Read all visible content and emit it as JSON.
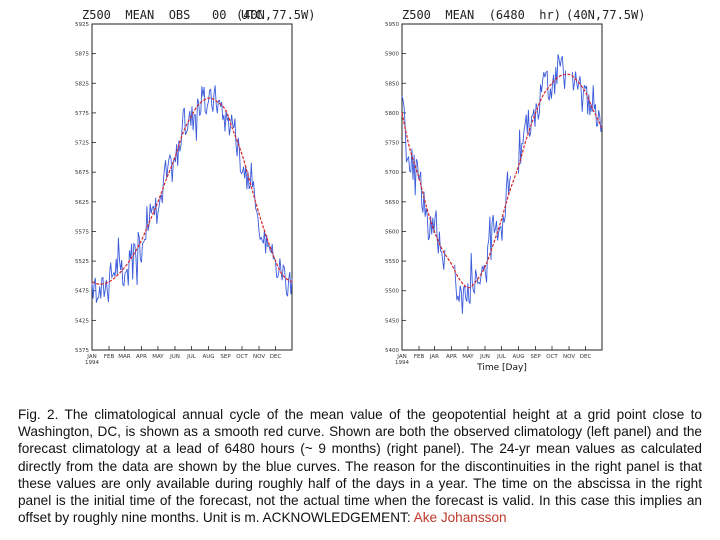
{
  "panels": [
    {
      "id": "left",
      "title": "Z500  MEAN  OBS   00  UTC",
      "location": "(40N,77.5W)",
      "xlabel": "",
      "months": [
        "JAN\n1994",
        "FEB",
        "MAR",
        "APR",
        "MAY",
        "JUN",
        "JUL",
        "AUG",
        "SEP",
        "OCT",
        "NOV",
        "DEC"
      ],
      "yticks": [
        5375,
        5425,
        5475,
        5525,
        5575,
        5625,
        5675,
        5725,
        5775,
        5825,
        5875,
        5925
      ],
      "ylim": [
        5375,
        5925
      ]
    },
    {
      "id": "right",
      "title": "Z500  MEAN  (6480  hr)",
      "location": "(40N,77.5W)",
      "xlabel": "Time [Day]",
      "months": [
        "JAN\n1994",
        "FEB",
        "JAR",
        "APR",
        "MAY",
        "JUN",
        "JUL",
        "AUG",
        "SEP",
        "OCT",
        "NOV",
        "DEC"
      ],
      "yticks": [
        5400,
        5450,
        5500,
        5550,
        5600,
        5650,
        5700,
        5750,
        5800,
        5850,
        5900,
        5950
      ],
      "ylim": [
        5400,
        5950
      ]
    }
  ],
  "chart_data": [
    {
      "type": "line",
      "title": "Z500  MEAN  OBS   00  UTC",
      "subtitle": "(40N,77.5W)",
      "xlabel": "",
      "ylabel": "",
      "x_ticks": [
        "JAN 1994",
        "FEB",
        "MAR",
        "APR",
        "MAY",
        "JUN",
        "JUL",
        "AUG",
        "SEP",
        "OCT",
        "NOV",
        "DEC"
      ],
      "ylim": [
        5375,
        5925
      ],
      "series": [
        {
          "color": "#d62728",
          "style": "smooth",
          "x": [
            "Jan 1",
            "Jan 15",
            "Feb 1",
            "Feb 15",
            "Mar 1",
            "Mar 15",
            "Apr 1",
            "Apr 15",
            "May 1",
            "May 15",
            "Jun 1",
            "Jun 15",
            "Jul 1",
            "Jul 15",
            "Aug 1",
            "Aug 15",
            "Sep 1",
            "Sep 15",
            "Oct 1",
            "Oct 15",
            "Nov 1",
            "Nov 15",
            "Dec 1",
            "Dec 15",
            "Dec 31"
          ],
          "y": [
            5490,
            5486,
            5490,
            5500,
            5514,
            5532,
            5560,
            5590,
            5625,
            5660,
            5700,
            5740,
            5770,
            5790,
            5800,
            5795,
            5780,
            5745,
            5705,
            5660,
            5605,
            5565,
            5525,
            5500,
            5490
          ]
        },
        {
          "color": "#3b5bdb",
          "style": "noisy",
          "x": [
            "Jan 1",
            "Jan 15",
            "Feb 1",
            "Feb 15",
            "Mar 1",
            "Mar 15",
            "Apr 1",
            "Apr 15",
            "May 1",
            "May 15",
            "Jun 1",
            "Jun 15",
            "Jul 1",
            "Jul 15",
            "Aug 1",
            "Aug 15",
            "Sep 1",
            "Sep 15",
            "Oct 1",
            "Oct 15",
            "Nov 1",
            "Nov 15",
            "Dec 1",
            "Dec 15",
            "Dec 31"
          ],
          "y": [
            5505,
            5470,
            5495,
            5520,
            5490,
            5545,
            5550,
            5610,
            5615,
            5670,
            5690,
            5755,
            5765,
            5795,
            5790,
            5800,
            5765,
            5760,
            5690,
            5670,
            5585,
            5580,
            5515,
            5510,
            5470
          ]
        }
      ]
    },
    {
      "type": "line",
      "title": "Z500  MEAN  (6480  hr)",
      "subtitle": "(40N,77.5W)",
      "xlabel": "Time [Day]",
      "ylabel": "",
      "x_ticks": [
        "JAN 1994",
        "FEB",
        "JAR",
        "APR",
        "MAY",
        "JUN",
        "JUL",
        "AUG",
        "SEP",
        "OCT",
        "NOV",
        "DEC"
      ],
      "ylim": [
        5400,
        5950
      ],
      "series": [
        {
          "color": "#d62728",
          "style": "smooth",
          "x": [
            "Jan 1",
            "Jan 15",
            "Feb 1",
            "Feb 15",
            "Mar 1",
            "Mar 15",
            "Apr 1",
            "Apr 15",
            "May 1",
            "May 15",
            "Jun 1",
            "Jun 15",
            "Jul 1",
            "Jul 15",
            "Aug 1",
            "Aug 15",
            "Sep 1",
            "Sep 15",
            "Oct 1",
            "Oct 15",
            "Nov 1",
            "Nov 15",
            "Dec 1",
            "Dec 15",
            "Dec 31"
          ],
          "y": [
            5800,
            5740,
            5690,
            5640,
            5600,
            5570,
            5545,
            5520,
            5505,
            5515,
            5540,
            5575,
            5620,
            5665,
            5710,
            5755,
            5800,
            5830,
            5850,
            5862,
            5865,
            5855,
            5835,
            5805,
            5775
          ]
        },
        {
          "color": "#3b5bdb",
          "style": "noisy",
          "x": [
            "Jan 1",
            "Jan 15",
            "Feb 1",
            "Feb 15",
            "Mar 1",
            "Mar 15",
            "Apr 1",
            "Apr 15",
            "May 1",
            "May 15",
            "Jun 1",
            "Jun 15",
            "Jul 1",
            "Jul 15",
            "Aug 1",
            "Aug 15",
            "Sep 1",
            "Sep 15",
            "Oct 1",
            "Oct 15",
            "Nov 1",
            "Nov 15",
            "Dec 1",
            "Dec 15",
            "Dec 31"
          ],
          "y": [
            5810,
            5720,
            5700,
            5610,
            5610,
            5555,
            5560,
            5490,
            5500,
            5520,
            5530,
            5600,
            5615,
            5690,
            5700,
            5780,
            5790,
            5850,
            5840,
            5880,
            5855,
            5870,
            5820,
            5820,
            5770
          ]
        }
      ]
    }
  ],
  "caption": {
    "text": "Fig. 2. The climatological annual cycle of the mean value of the geopotential height at a grid point close to Washington, DC, is shown as a smooth red curve. Shown are both the observed climatology (left panel) and the forecast climatology at a lead of 6480 hours (~ 9 months) (right panel). The 24-yr mean values as calculated directly from the data are shown by the blue curves. The reason for the discontinuities in the right panel is that these values are only available during roughly half of the days in a year. The time on the abscissa in the right panel is the initial time of the forecast, not the actual time when the forecast is valid. In this case this implies an offset by roughly nine months. Unit is m.   ACKNOWLEDGEMENT: ",
    "ack_name": "Ake Johansson"
  },
  "colors": {
    "smooth_curve": "#d62728",
    "raw_curve": "#3b5bdb"
  }
}
